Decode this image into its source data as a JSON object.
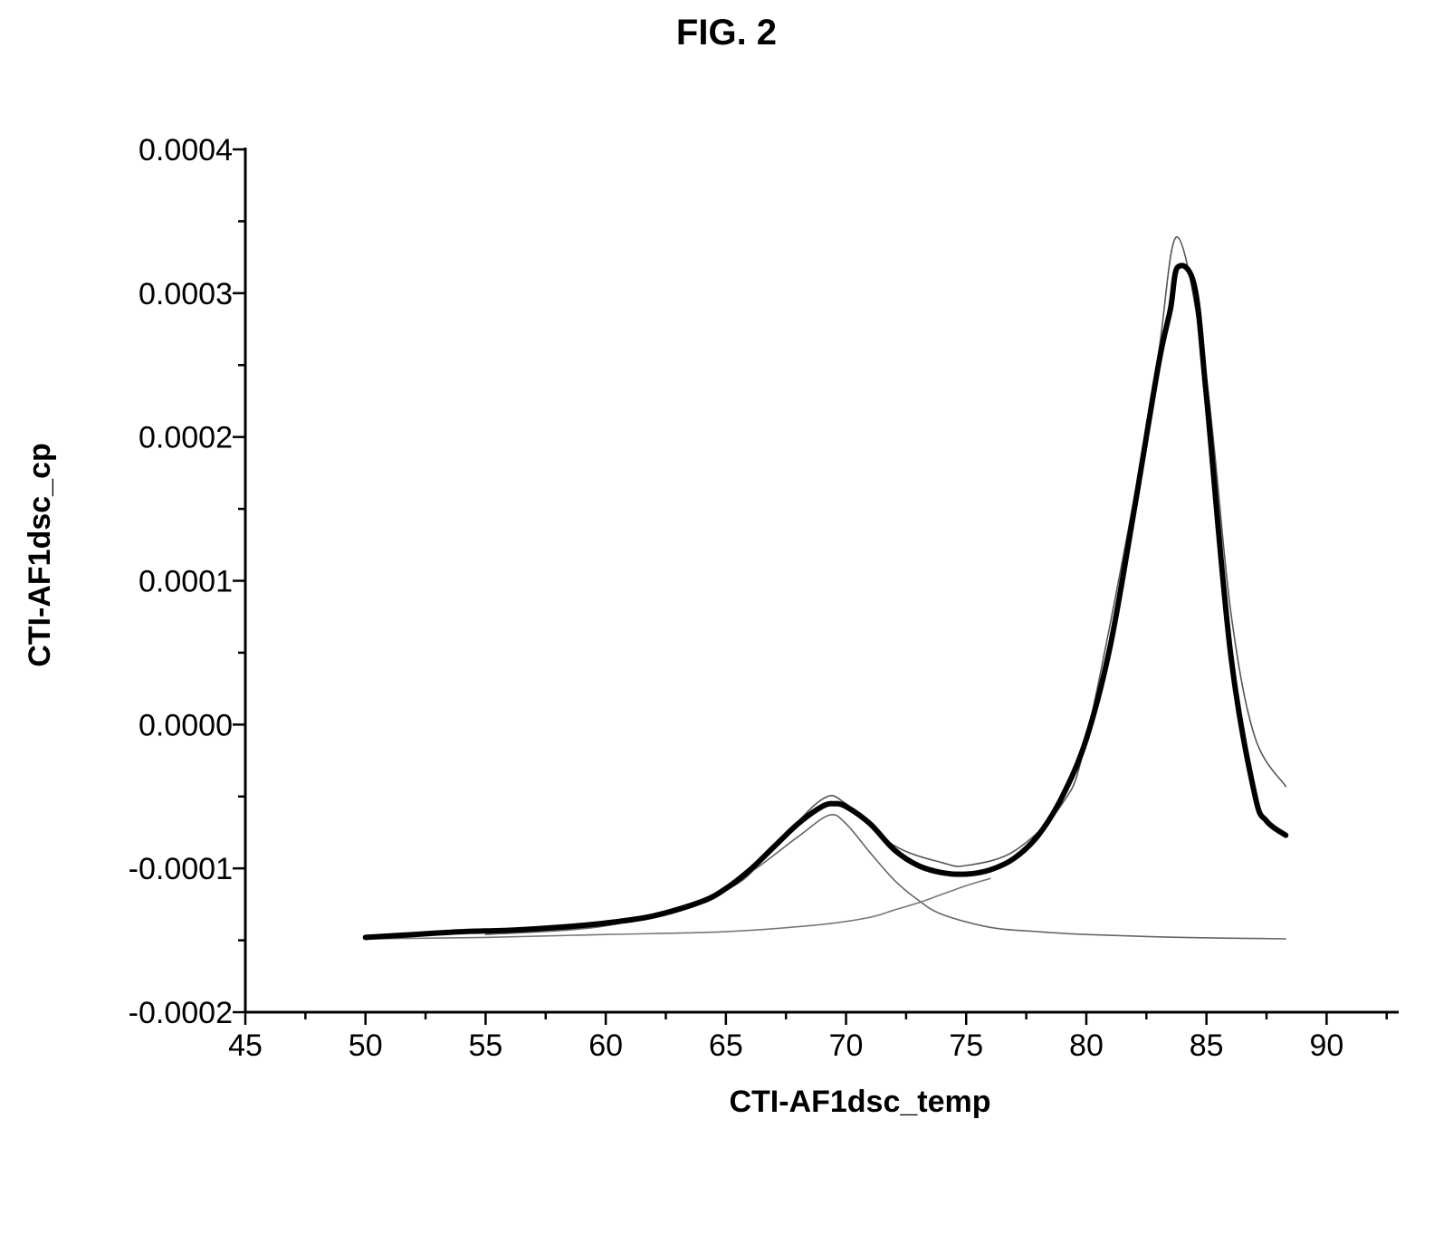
{
  "figure": {
    "label": "FIG. 2"
  },
  "chart_data": {
    "type": "line",
    "title": "",
    "xlabel": "CTI-AF1dsc_temp",
    "ylabel": "CTI-AF1dsc_cp",
    "xlim": [
      45,
      93
    ],
    "ylim": [
      -0.0002,
      0.0004
    ],
    "xticks": [
      45,
      50,
      55,
      60,
      65,
      70,
      75,
      80,
      85,
      90
    ],
    "xtick_labels": [
      "45",
      "50",
      "55",
      "60",
      "65",
      "70",
      "75",
      "80",
      "85",
      "90"
    ],
    "yticks": [
      -0.0002,
      -0.0001,
      0.0,
      0.0001,
      0.0002,
      0.0003,
      0.0004
    ],
    "ytick_labels": [
      "-0.0002",
      "-0.0001",
      "0.0000",
      "0.0001",
      "0.0002",
      "0.0003",
      "0.0004"
    ],
    "grid": false,
    "legend": "none",
    "series": [
      {
        "style": "thick",
        "color": "#000000",
        "x": [
          50,
          52,
          54,
          56,
          58,
          60,
          62,
          64,
          65,
          66,
          67,
          68,
          69,
          69.5,
          70,
          71,
          72,
          73,
          74,
          75,
          76,
          77,
          78,
          79,
          80,
          81,
          82,
          83,
          83.5,
          83.8,
          84.5,
          85,
          86,
          87,
          87.5,
          88.3
        ],
        "y": [
          -0.000148,
          -0.000146,
          -0.000144,
          -0.000143,
          -0.000141,
          -0.000138,
          -0.000133,
          -0.000123,
          -0.000114,
          -0.000101,
          -8.5e-05,
          -6.9e-05,
          -5.7e-05,
          -5.5e-05,
          -5.7e-05,
          -6.9e-05,
          -8.7e-05,
          -9.8e-05,
          -0.000103,
          -0.000104,
          -0.000101,
          -9.3e-05,
          -7.7e-05,
          -5e-05,
          -1e-05,
          5.5e-05,
          0.00015,
          0.00025,
          0.000289,
          0.000318,
          0.000305,
          0.000228,
          5e-05,
          -4.8e-05,
          -6.7e-05,
          -7.7e-05
        ]
      },
      {
        "style": "thin",
        "color": "#555555",
        "x": [
          50,
          55,
          60,
          65,
          67,
          69,
          70,
          72,
          74,
          75,
          77,
          79,
          80,
          82,
          83,
          83.8,
          85,
          86,
          87,
          88.3
        ],
        "y": [
          -0.000148,
          -0.000144,
          -0.000139,
          -0.000115,
          -8.5e-05,
          -5.2e-05,
          -5.5e-05,
          -8.4e-05,
          -9.6e-05,
          -9.8e-05,
          -8.8e-05,
          -5.5e-05,
          -1e-05,
          0.000158,
          0.000258,
          0.000339,
          0.00024,
          8e-05,
          -8e-06,
          -4.3e-05
        ]
      },
      {
        "style": "thin",
        "color": "#666666",
        "x": [
          55,
          60,
          64,
          66,
          68,
          69.3,
          70,
          71,
          72,
          73,
          74,
          76,
          78,
          80,
          84,
          88.3
        ],
        "y": [
          -0.000146,
          -0.00014,
          -0.000122,
          -0.000103,
          -7.8e-05,
          -6.3e-05,
          -6.9e-05,
          -8.9e-05,
          -0.000108,
          -0.000122,
          -0.000132,
          -0.000141,
          -0.000144,
          -0.000146,
          -0.000148,
          -0.000149
        ]
      },
      {
        "style": "thin",
        "color": "#777777",
        "x": [
          50,
          55,
          60,
          65,
          69,
          71,
          72,
          73,
          74,
          75,
          76
        ],
        "y": [
          -0.000149,
          -0.000148,
          -0.000146,
          -0.000144,
          -0.000139,
          -0.000134,
          -0.000129,
          -0.000124,
          -0.000118,
          -0.000112,
          -0.000107
        ]
      }
    ]
  }
}
